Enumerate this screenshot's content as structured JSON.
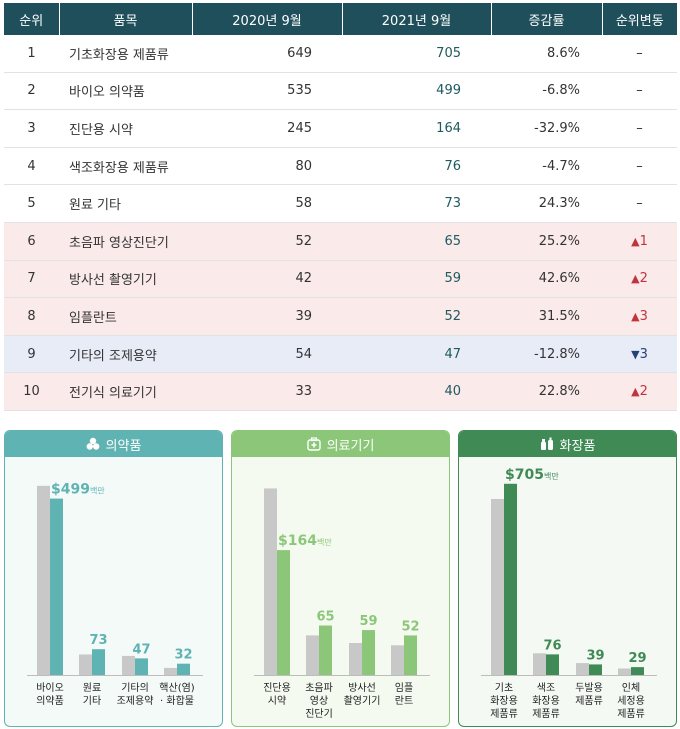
{
  "table": {
    "headers": [
      "순위",
      "품목",
      "2020년 9월",
      "2021년 9월",
      "증감률",
      "순위변동"
    ],
    "rows": [
      {
        "rank": "1",
        "item": "기초화장용 제품류",
        "v2020": "649",
        "v2021": "705",
        "change": "8.6%",
        "move_dir": "",
        "move": "–"
      },
      {
        "rank": "2",
        "item": "바이오 의약품",
        "v2020": "535",
        "v2021": "499",
        "change": "-6.8%",
        "move_dir": "",
        "move": "–"
      },
      {
        "rank": "3",
        "item": "진단용 시약",
        "v2020": "245",
        "v2021": "164",
        "change": "-32.9%",
        "move_dir": "",
        "move": "–"
      },
      {
        "rank": "4",
        "item": "색조화장용 제품류",
        "v2020": "80",
        "v2021": "76",
        "change": "-4.7%",
        "move_dir": "",
        "move": "–"
      },
      {
        "rank": "5",
        "item": "원료 기타",
        "v2020": "58",
        "v2021": "73",
        "change": "24.3%",
        "move_dir": "",
        "move": "–"
      },
      {
        "rank": "6",
        "item": "초음파 영상진단기",
        "v2020": "52",
        "v2021": "65",
        "change": "25.2%",
        "move_dir": "up",
        "move": "1"
      },
      {
        "rank": "7",
        "item": "방사선 촬영기기",
        "v2020": "42",
        "v2021": "59",
        "change": "42.6%",
        "move_dir": "up",
        "move": "2"
      },
      {
        "rank": "8",
        "item": "임플란트",
        "v2020": "39",
        "v2021": "52",
        "change": "31.5%",
        "move_dir": "up",
        "move": "3"
      },
      {
        "rank": "9",
        "item": "기타의 조제용약",
        "v2020": "54",
        "v2021": "47",
        "change": "-12.8%",
        "move_dir": "down",
        "move": "3"
      },
      {
        "rank": "10",
        "item": "전기식 의료기기",
        "v2020": "33",
        "v2021": "40",
        "change": "22.8%",
        "move_dir": "up",
        "move": "2"
      }
    ]
  },
  "chart_data": [
    {
      "type": "bar",
      "title": "의약품",
      "color_2020": "#c8c8c8",
      "color_2021": "#5fb3b3",
      "categories": [
        [
          "바이오",
          "의약품"
        ],
        [
          "원료",
          "기타"
        ],
        [
          "기타의",
          "조제용약"
        ],
        [
          "핵산(염)",
          "· 화합물"
        ]
      ],
      "series": [
        {
          "values": [
            535,
            58,
            54,
            20
          ]
        },
        {
          "values": [
            499,
            73,
            47,
            32
          ]
        }
      ],
      "labels": [
        "$499",
        "73",
        "47",
        "32"
      ],
      "unit": "백만",
      "ymax": 560
    },
    {
      "type": "bar",
      "title": "의료기기",
      "color_2020": "#c8c8c8",
      "color_2021": "#8cc779",
      "categories": [
        [
          "진단용",
          "시약"
        ],
        [
          "초음파",
          "영상",
          "진단기"
        ],
        [
          "방사선",
          "촬영기기"
        ],
        [
          "임플",
          "란트"
        ]
      ],
      "series": [
        {
          "values": [
            245,
            52,
            42,
            39
          ]
        },
        {
          "values": [
            164,
            65,
            59,
            52
          ]
        }
      ],
      "labels": [
        "$164",
        "65",
        "59",
        "52"
      ],
      "unit": "백만",
      "ymax": 260
    },
    {
      "type": "bar",
      "title": "화장품",
      "color_2020": "#c8c8c8",
      "color_2021": "#3f8a55",
      "categories": [
        [
          "기초",
          "화장용",
          "제품류"
        ],
        [
          "색조",
          "화장용",
          "제품류"
        ],
        [
          "두발용",
          "제품류"
        ],
        [
          "인체",
          "세정용",
          "제품류"
        ]
      ],
      "series": [
        {
          "values": [
            649,
            80,
            44,
            24
          ]
        },
        {
          "values": [
            705,
            76,
            39,
            29
          ]
        }
      ],
      "labels": [
        "$705",
        "76",
        "39",
        "29"
      ],
      "unit": "백만",
      "ymax": 730
    }
  ]
}
